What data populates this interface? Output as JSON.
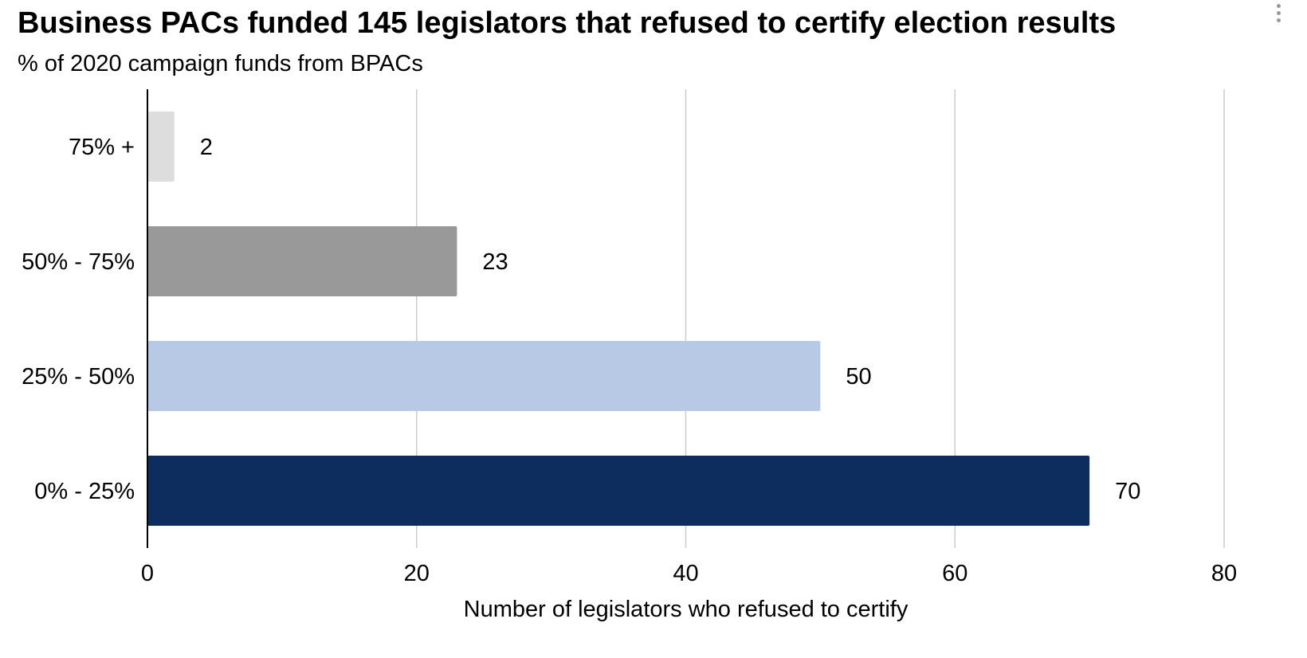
{
  "chart_data": {
    "type": "bar",
    "orientation": "horizontal",
    "title": "Business PACs funded 145 legislators that refused to certify election results",
    "subtitle": "% of 2020 campaign funds from BPACs",
    "xlabel": "Number of legislators who refused to certify",
    "ylabel": "",
    "xlim": [
      0,
      80
    ],
    "xticks": [
      0,
      20,
      40,
      60,
      80
    ],
    "grid": true,
    "categories": [
      "75% +",
      "50% - 75%",
      "25% - 50%",
      "0% - 25%"
    ],
    "values": [
      2,
      23,
      50,
      70
    ],
    "colors": [
      "#dddddd",
      "#999999",
      "#b8c9e5",
      "#0e2d5f"
    ],
    "data_labels": [
      "2",
      "23",
      "50",
      "70"
    ]
  }
}
